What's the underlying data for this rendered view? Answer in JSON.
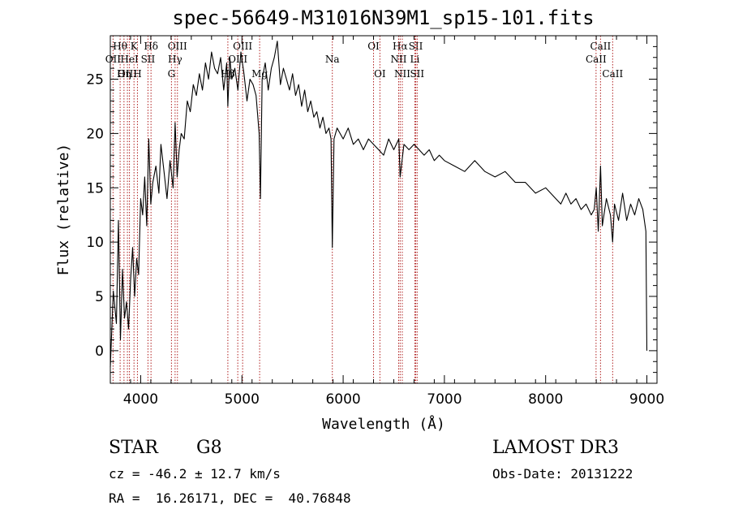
{
  "title": "spec-56649-M31016N39M1_sp15-101.fits",
  "footer": {
    "object_class": "STAR",
    "subclass": "G8",
    "survey": "LAMOST DR3",
    "redshift": "cz = -46.2 ± 12.7 km/s",
    "obs_date": "Obs-Date: 20131222",
    "coords": "RA =  16.26171, DEC =  40.76848"
  },
  "chart_data": {
    "type": "line",
    "title": "spec-56649-M31016N39M1_sp15-101.fits",
    "xlabel": "Wavelength (Å)",
    "ylabel": "Flux (relative)",
    "xlim": [
      3700,
      9100
    ],
    "ylim": [
      -3,
      29
    ],
    "xticks": [
      4000,
      5000,
      6000,
      7000,
      8000,
      9000
    ],
    "yticks": [
      0,
      5,
      10,
      15,
      20,
      25
    ],
    "grid": false,
    "series": [
      {
        "color": "#000000",
        "x": [
          3700,
          3730,
          3760,
          3780,
          3800,
          3820,
          3840,
          3860,
          3880,
          3900,
          3920,
          3940,
          3960,
          3980,
          4000,
          4020,
          4040,
          4060,
          4080,
          4100,
          4120,
          4150,
          4180,
          4200,
          4230,
          4260,
          4290,
          4320,
          4340,
          4360,
          4380,
          4400,
          4430,
          4460,
          4490,
          4520,
          4550,
          4580,
          4610,
          4640,
          4670,
          4700,
          4730,
          4760,
          4790,
          4820,
          4850,
          4861,
          4880,
          4900,
          4930,
          4960,
          4990,
          5020,
          5050,
          5080,
          5110,
          5140,
          5170,
          5183,
          5200,
          5230,
          5260,
          5290,
          5320,
          5350,
          5380,
          5410,
          5440,
          5470,
          5500,
          5530,
          5560,
          5590,
          5620,
          5650,
          5680,
          5710,
          5740,
          5770,
          5800,
          5830,
          5860,
          5880,
          5893,
          5910,
          5940,
          5970,
          6000,
          6050,
          6100,
          6150,
          6200,
          6250,
          6300,
          6350,
          6400,
          6450,
          6500,
          6550,
          6563,
          6600,
          6650,
          6700,
          6750,
          6800,
          6850,
          6900,
          6950,
          7000,
          7100,
          7200,
          7300,
          7400,
          7500,
          7600,
          7700,
          7800,
          7900,
          8000,
          8050,
          8100,
          8150,
          8200,
          8250,
          8300,
          8350,
          8400,
          8450,
          8480,
          8500,
          8520,
          8542,
          8560,
          8600,
          8640,
          8662,
          8680,
          8720,
          8760,
          8800,
          8840,
          8880,
          8920,
          8960,
          8990,
          9000
        ],
        "values": [
          -1.5,
          5.5,
          2.5,
          12.0,
          1.0,
          7.5,
          3.0,
          4.5,
          2.0,
          6.5,
          9.5,
          5.0,
          8.5,
          7.0,
          14.0,
          12.5,
          16.0,
          11.5,
          19.5,
          13.5,
          15.5,
          17.0,
          14.5,
          19.0,
          16.5,
          14.0,
          17.5,
          15.0,
          21.0,
          16.0,
          18.5,
          20.0,
          19.5,
          23.0,
          22.0,
          24.5,
          23.5,
          25.5,
          24.0,
          26.5,
          25.0,
          27.5,
          26.0,
          25.5,
          27.0,
          24.0,
          26.5,
          22.5,
          27.0,
          25.0,
          26.0,
          24.0,
          27.5,
          25.5,
          23.0,
          25.0,
          24.5,
          23.5,
          20.0,
          14.0,
          25.0,
          26.5,
          24.0,
          26.0,
          27.0,
          28.5,
          24.5,
          26.0,
          25.0,
          24.0,
          25.5,
          23.5,
          24.5,
          22.5,
          24.0,
          22.0,
          23.0,
          21.5,
          22.0,
          20.5,
          21.5,
          20.0,
          20.5,
          19.5,
          9.5,
          19.5,
          20.5,
          20.0,
          19.5,
          20.5,
          19.0,
          19.5,
          18.5,
          19.5,
          19.0,
          18.5,
          18.0,
          19.5,
          18.5,
          19.5,
          16.0,
          19.0,
          18.5,
          19.0,
          18.5,
          18.0,
          18.5,
          17.5,
          18.0,
          17.5,
          17.0,
          16.5,
          17.5,
          16.5,
          16.0,
          16.5,
          15.5,
          15.5,
          14.5,
          15.0,
          14.5,
          14.0,
          13.5,
          14.5,
          13.5,
          14.0,
          13.0,
          13.5,
          12.5,
          13.0,
          15.0,
          11.0,
          17.0,
          11.5,
          14.0,
          12.5,
          10.0,
          13.5,
          12.0,
          14.5,
          12.0,
          13.5,
          12.5,
          14.0,
          13.0,
          11.0,
          0.0
        ]
      }
    ],
    "line_markers": [
      {
        "label": "Hθ",
        "x": 3797,
        "row": 0
      },
      {
        "label": "OII",
        "x": 3727,
        "row": 1
      },
      {
        "label": "OIII",
        "x": 3869,
        "row": 2
      },
      {
        "label": "K",
        "x": 3934,
        "row": 0
      },
      {
        "label": "HeI",
        "x": 3889,
        "row": 1
      },
      {
        "label": "Hη",
        "x": 3835,
        "row": 2
      },
      {
        "label": "Hδ",
        "x": 4102,
        "row": 0
      },
      {
        "label": "SII",
        "x": 4072,
        "row": 1
      },
      {
        "label": "H",
        "x": 3968,
        "row": 2
      },
      {
        "label": "OIII",
        "x": 4363,
        "row": 0
      },
      {
        "label": "Hγ",
        "x": 4340,
        "row": 1
      },
      {
        "label": "G",
        "x": 4304,
        "row": 2
      },
      {
        "label": "OIII",
        "x": 5007,
        "row": 0
      },
      {
        "label": "OIII",
        "x": 4959,
        "row": 1
      },
      {
        "label": "Hβ",
        "x": 4861,
        "row": 2
      },
      {
        "label": "Mg",
        "x": 5175,
        "row": 2
      },
      {
        "label": "Na",
        "x": 5893,
        "row": 1
      },
      {
        "label": "OI",
        "x": 6300,
        "row": 0
      },
      {
        "label": "OI",
        "x": 6363,
        "row": 2
      },
      {
        "label": "Hα",
        "x": 6563,
        "row": 0
      },
      {
        "label": "SII",
        "x": 6717,
        "row": 0
      },
      {
        "label": "NII",
        "x": 6548,
        "row": 1
      },
      {
        "label": "Li",
        "x": 6708,
        "row": 1
      },
      {
        "label": "NII",
        "x": 6584,
        "row": 2
      },
      {
        "label": "SII",
        "x": 6731,
        "row": 2
      },
      {
        "label": "CaII",
        "x": 8542,
        "row": 0
      },
      {
        "label": "CaII",
        "x": 8498,
        "row": 1
      },
      {
        "label": "CaII",
        "x": 8662,
        "row": 2
      }
    ],
    "colors": {
      "spectrum": "#000000",
      "marker_line": "#b02020",
      "axes": "#000000"
    }
  }
}
